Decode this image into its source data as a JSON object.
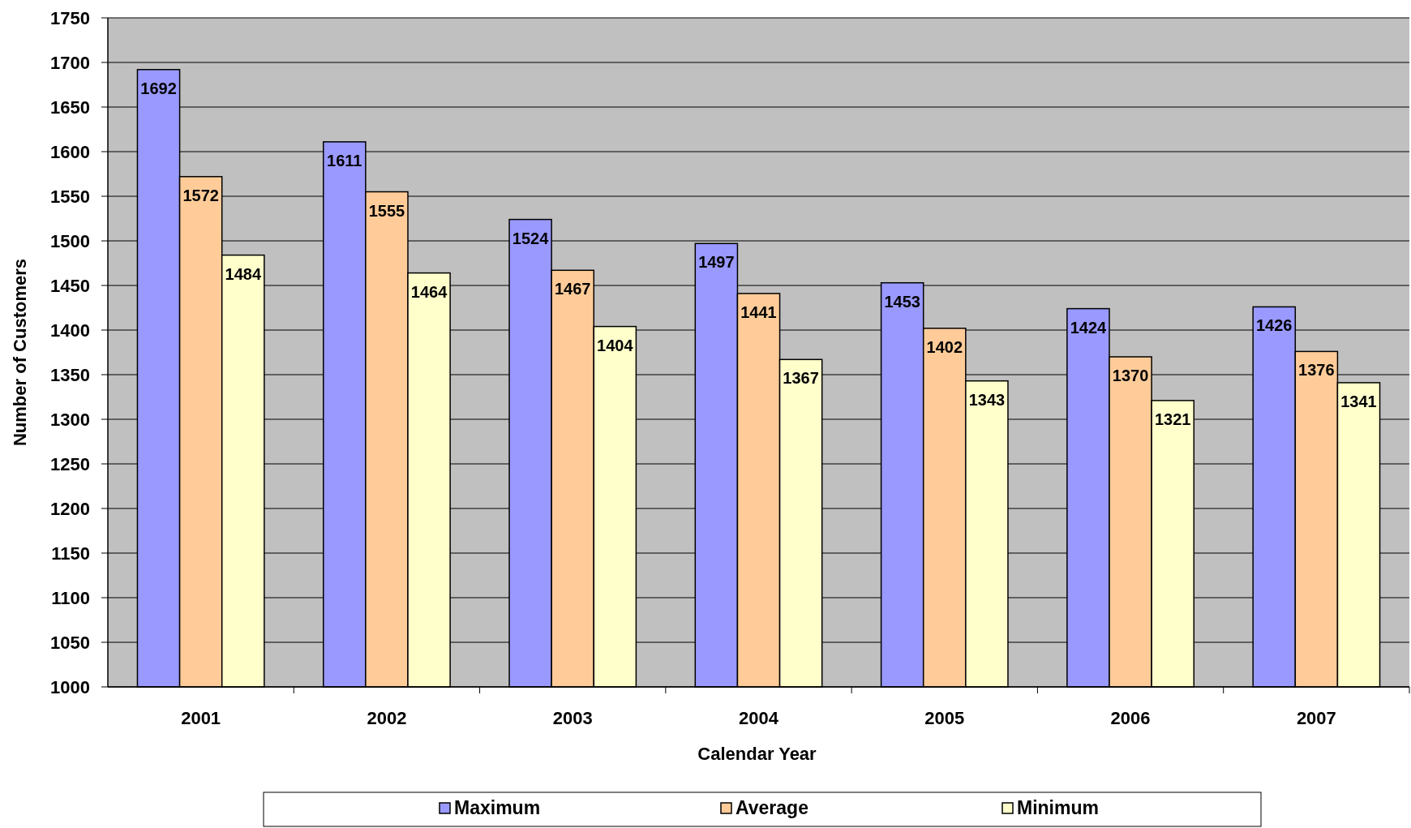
{
  "chart_data": {
    "type": "bar",
    "xlabel": "Calendar Year",
    "ylabel": "Number of Customers",
    "categories": [
      "2001",
      "2002",
      "2003",
      "2004",
      "2005",
      "2006",
      "2007"
    ],
    "series": [
      {
        "name": "Maximum",
        "color": "#9999ff",
        "values": [
          1692,
          1611,
          1524,
          1497,
          1453,
          1424,
          1426
        ]
      },
      {
        "name": "Average",
        "color": "#ffcc99",
        "values": [
          1572,
          1555,
          1467,
          1441,
          1402,
          1370,
          1376
        ]
      },
      {
        "name": "Minimum",
        "color": "#ffffcc",
        "values": [
          1484,
          1464,
          1404,
          1367,
          1343,
          1321,
          1341
        ]
      }
    ],
    "ylim": [
      1000,
      1750
    ],
    "yticks": [
      1000,
      1050,
      1100,
      1150,
      1200,
      1250,
      1300,
      1350,
      1400,
      1450,
      1500,
      1550,
      1600,
      1650,
      1700,
      1750
    ],
    "grid": "y",
    "data_labels": true,
    "legend": "bottom"
  }
}
